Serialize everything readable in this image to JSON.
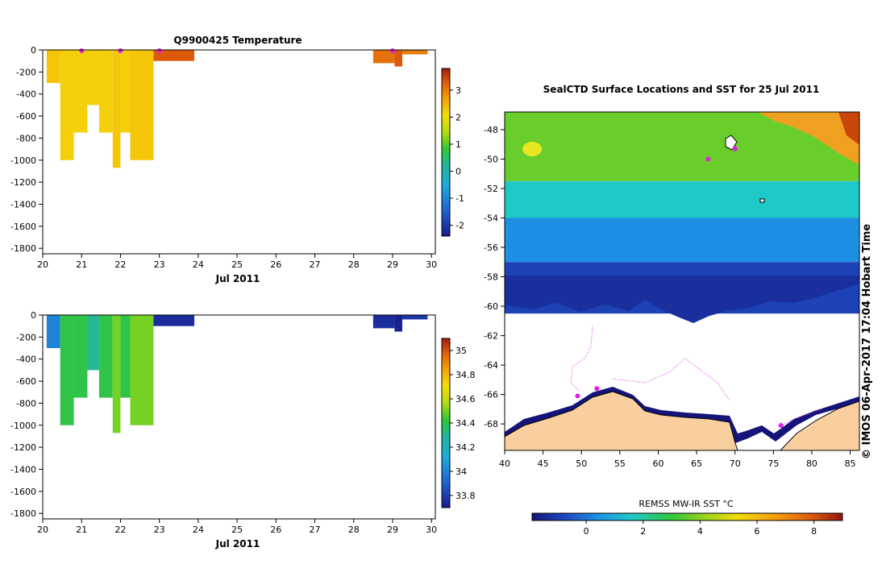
{
  "credit": "© IMOS 06-Apr-2017 17:04 Hobart Time",
  "chart_data": [
    {
      "type": "heatmap",
      "title": "Q9900425  Temperature",
      "xlabel": "Jul 2011",
      "ylabel": "",
      "x_ticks": [
        "20",
        "21",
        "22",
        "23",
        "24",
        "25",
        "26",
        "27",
        "28",
        "29",
        "30"
      ],
      "y_ticks": [
        "0",
        "-200",
        "-400",
        "-600",
        "-800",
        "-1000",
        "-1200",
        "-1400",
        "-1600",
        "-1800"
      ],
      "xlim": [
        20,
        30.1
      ],
      "ylim": [
        -1850,
        0
      ],
      "colorbar_ticks": [
        "3",
        "2",
        "1",
        "0",
        "-1",
        "-2"
      ],
      "colorbar_range": [
        -2.4,
        3.8
      ],
      "profiles": [
        {
          "x0": 20.1,
          "x1": 20.45,
          "depth_bottom": -300,
          "value": 2.3
        },
        {
          "x0": 20.45,
          "x1": 20.8,
          "depth_bottom": -1000,
          "value": 2.2
        },
        {
          "x0": 20.8,
          "x1": 21.15,
          "depth_bottom": -750,
          "value": 2.2
        },
        {
          "x0": 21.15,
          "x1": 21.45,
          "depth_bottom": -500,
          "value": 2.2
        },
        {
          "x0": 21.45,
          "x1": 21.8,
          "depth_bottom": -750,
          "value": 2.2
        },
        {
          "x0": 21.8,
          "x1": 22.0,
          "depth_bottom": -1070,
          "value": 2.3
        },
        {
          "x0": 22.0,
          "x1": 22.25,
          "depth_bottom": -750,
          "value": 2.2
        },
        {
          "x0": 22.25,
          "x1": 22.85,
          "depth_bottom": -1000,
          "value": 2.3
        },
        {
          "x0": 22.85,
          "x1": 23.9,
          "depth_bottom": -100,
          "value": 3.3
        },
        {
          "x0": 28.5,
          "x1": 29.05,
          "depth_bottom": -120,
          "value": 3.1
        },
        {
          "x0": 29.05,
          "x1": 29.25,
          "depth_bottom": -150,
          "value": 3.3
        },
        {
          "x0": 29.25,
          "x1": 29.9,
          "depth_bottom": -40,
          "value": 3.0
        }
      ],
      "surface_markers_x": [
        21.0,
        22.0,
        23.0,
        29.0
      ]
    },
    {
      "type": "heatmap",
      "title": "",
      "xlabel": "Jul 2011",
      "ylabel": "",
      "x_ticks": [
        "20",
        "21",
        "22",
        "23",
        "24",
        "25",
        "26",
        "27",
        "28",
        "29",
        "30"
      ],
      "y_ticks": [
        "0",
        "-200",
        "-400",
        "-600",
        "-800",
        "-1000",
        "-1200",
        "-1400",
        "-1600",
        "-1800"
      ],
      "xlim": [
        20,
        30.1
      ],
      "ylim": [
        -1850,
        0
      ],
      "colorbar_ticks": [
        "35",
        "34.8",
        "34.6",
        "34.4",
        "34.2",
        "34",
        "33.8"
      ],
      "colorbar_range": [
        33.7,
        35.1
      ],
      "profiles": [
        {
          "x0": 20.1,
          "x1": 20.45,
          "depth_bottom": -300,
          "value": 34.0
        },
        {
          "x0": 20.45,
          "x1": 20.8,
          "depth_bottom": -1000,
          "value": 34.4
        },
        {
          "x0": 20.8,
          "x1": 21.15,
          "depth_bottom": -750,
          "value": 34.4
        },
        {
          "x0": 21.15,
          "x1": 21.45,
          "depth_bottom": -500,
          "value": 34.3
        },
        {
          "x0": 21.45,
          "x1": 21.8,
          "depth_bottom": -750,
          "value": 34.4
        },
        {
          "x0": 21.8,
          "x1": 22.0,
          "depth_bottom": -1070,
          "value": 34.5
        },
        {
          "x0": 22.0,
          "x1": 22.25,
          "depth_bottom": -750,
          "value": 34.4
        },
        {
          "x0": 22.25,
          "x1": 22.85,
          "depth_bottom": -1000,
          "value": 34.5
        },
        {
          "x0": 22.85,
          "x1": 23.9,
          "depth_bottom": -100,
          "value": 33.75
        },
        {
          "x0": 28.5,
          "x1": 29.05,
          "depth_bottom": -120,
          "value": 33.75
        },
        {
          "x0": 29.05,
          "x1": 29.25,
          "depth_bottom": -150,
          "value": 33.72
        },
        {
          "x0": 29.25,
          "x1": 29.9,
          "depth_bottom": -40,
          "value": 33.78
        }
      ]
    },
    {
      "type": "heatmap",
      "title": "SealCTD Surface Locations and SST for 25 Jul 2011",
      "xlabel": "",
      "ylabel": "",
      "x_ticks": [
        "40",
        "45",
        "50",
        "55",
        "60",
        "65",
        "70",
        "75",
        "80",
        "85"
      ],
      "y_ticks": [
        "-48",
        "-50",
        "-52",
        "-54",
        "-56",
        "-58",
        "-60",
        "-62",
        "-64",
        "-66",
        "-68"
      ],
      "xlim": [
        40,
        86.2
      ],
      "ylim": [
        -69.8,
        -46.8
      ],
      "colorbar_label": "REMSS MW-IR SST °C",
      "colorbar_ticks": [
        "0",
        "2",
        "4",
        "6",
        "8"
      ],
      "colorbar_range": [
        -1.9,
        9.0
      ],
      "sst_zones": [
        {
          "lat_north": -46.8,
          "lat_south": -51.5,
          "sst": 3.6
        },
        {
          "lat_north": -51.5,
          "lat_south": -54.0,
          "sst": 1.6
        },
        {
          "lat_north": -54.0,
          "lat_south": -57.0,
          "sst": 0.4
        },
        {
          "lat_north": -57.0,
          "lat_south": -60.5,
          "sst": -0.9
        }
      ],
      "seal_positions": [
        {
          "lon": 70.0,
          "lat": -49.3
        },
        {
          "lon": 66.5,
          "lat": -50.0
        },
        {
          "lon": 49.5,
          "lat": -66.1
        },
        {
          "lon": 52.0,
          "lat": -65.6
        },
        {
          "lon": 76.0,
          "lat": -68.1
        }
      ]
    }
  ]
}
